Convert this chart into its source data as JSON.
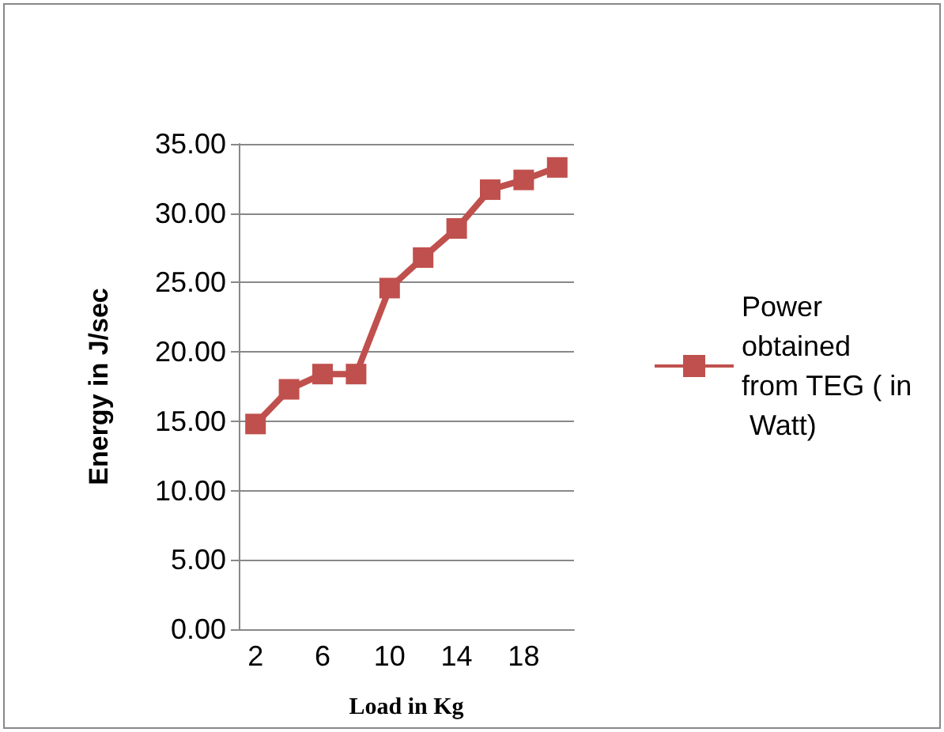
{
  "chart_data": {
    "type": "line",
    "xlabel": "Load in Kg",
    "ylabel": "Energy in J/sec",
    "categories": [
      "2",
      null,
      "6",
      null,
      "10",
      null,
      "14",
      null,
      "18",
      null
    ],
    "series": [
      {
        "name": "Power obtained from TEG ( in Watt)",
        "color": "#c0504d",
        "values": [
          14.8,
          17.3,
          18.4,
          18.4,
          24.6,
          26.8,
          28.9,
          31.7,
          32.4,
          33.3
        ]
      }
    ],
    "ylim": [
      0,
      35
    ],
    "yticks": [
      {
        "value": 0,
        "label": "0.00"
      },
      {
        "value": 5,
        "label": "5.00"
      },
      {
        "value": 10,
        "label": "10.00"
      },
      {
        "value": 15,
        "label": "15.00"
      },
      {
        "value": 20,
        "label": "20.00"
      },
      {
        "value": 25,
        "label": "25.00"
      },
      {
        "value": 30,
        "label": "30.00"
      },
      {
        "value": 35,
        "label": "35.00"
      }
    ],
    "grid": "y",
    "legend": "right",
    "marker": "square",
    "line_style": "solid"
  }
}
